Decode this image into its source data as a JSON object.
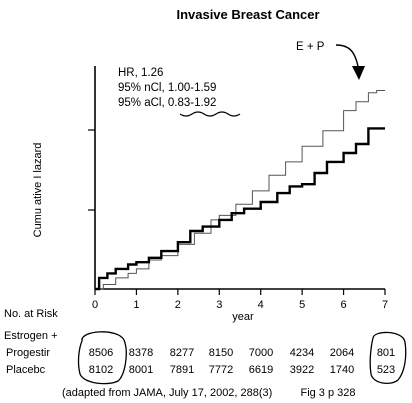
{
  "chart_data": {
    "type": "line",
    "title": "Invasive Breast Cancer",
    "xlabel": "year",
    "ylabel": "Cumu ative I lazard",
    "xlim": [
      0,
      7
    ],
    "ylim": [
      0,
      1
    ],
    "x_ticks": [
      "0",
      "1",
      "2",
      "3",
      "4",
      "5",
      "6",
      "7"
    ],
    "series": [
      {
        "name": "E + P",
        "style": "thin",
        "color": "#555555",
        "points": [
          [
            0,
            0.0
          ],
          [
            0.2,
            0.02
          ],
          [
            0.5,
            0.05
          ],
          [
            0.8,
            0.07
          ],
          [
            1.0,
            0.09
          ],
          [
            1.3,
            0.13
          ],
          [
            1.6,
            0.15
          ],
          [
            2.0,
            0.2
          ],
          [
            2.4,
            0.25
          ],
          [
            2.8,
            0.31
          ],
          [
            3.0,
            0.33
          ],
          [
            3.4,
            0.38
          ],
          [
            3.8,
            0.44
          ],
          [
            4.2,
            0.51
          ],
          [
            4.6,
            0.57
          ],
          [
            5.0,
            0.64
          ],
          [
            5.5,
            0.71
          ],
          [
            6.0,
            0.8
          ],
          [
            6.3,
            0.84
          ],
          [
            6.6,
            0.88
          ],
          [
            6.8,
            0.89
          ],
          [
            7.0,
            0.89
          ]
        ]
      },
      {
        "name": "Placebo",
        "style": "thick",
        "color": "#000000",
        "points": [
          [
            0,
            0.0
          ],
          [
            0.1,
            0.05
          ],
          [
            0.3,
            0.07
          ],
          [
            0.5,
            0.09
          ],
          [
            0.8,
            0.11
          ],
          [
            1.0,
            0.12
          ],
          [
            1.3,
            0.14
          ],
          [
            1.6,
            0.17
          ],
          [
            2.0,
            0.21
          ],
          [
            2.3,
            0.26
          ],
          [
            2.6,
            0.28
          ],
          [
            3.0,
            0.31
          ],
          [
            3.3,
            0.34
          ],
          [
            3.6,
            0.36
          ],
          [
            4.0,
            0.39
          ],
          [
            4.4,
            0.43
          ],
          [
            4.7,
            0.46
          ],
          [
            5.0,
            0.47
          ],
          [
            5.3,
            0.52
          ],
          [
            5.6,
            0.57
          ],
          [
            6.0,
            0.61
          ],
          [
            6.3,
            0.65
          ],
          [
            6.6,
            0.72
          ],
          [
            7.0,
            0.72
          ]
        ]
      }
    ],
    "annotations": {
      "label": "E + P",
      "hr": "HR, 1.26",
      "ci_n": "95% nCl, 1.00-1.59",
      "ci_a": "95% aCl, 0.83-1.92"
    }
  },
  "at_risk": {
    "header": "No. at Risk",
    "row1_label_a": "Estrogen +",
    "row1_label_b": "Progestir",
    "row1_values": [
      "8506",
      "8378",
      "8277",
      "8150",
      "7000",
      "4234",
      "2064",
      "801"
    ],
    "row2_label": "Placebc",
    "row2_values": [
      "8102",
      "8001",
      "7891",
      "7772",
      "6619",
      "3922",
      "1740",
      "523"
    ]
  },
  "source": "(adapted from JAMA, July 17, 2002, 288(3)",
  "figure_ref": "Fig 3 p 328"
}
